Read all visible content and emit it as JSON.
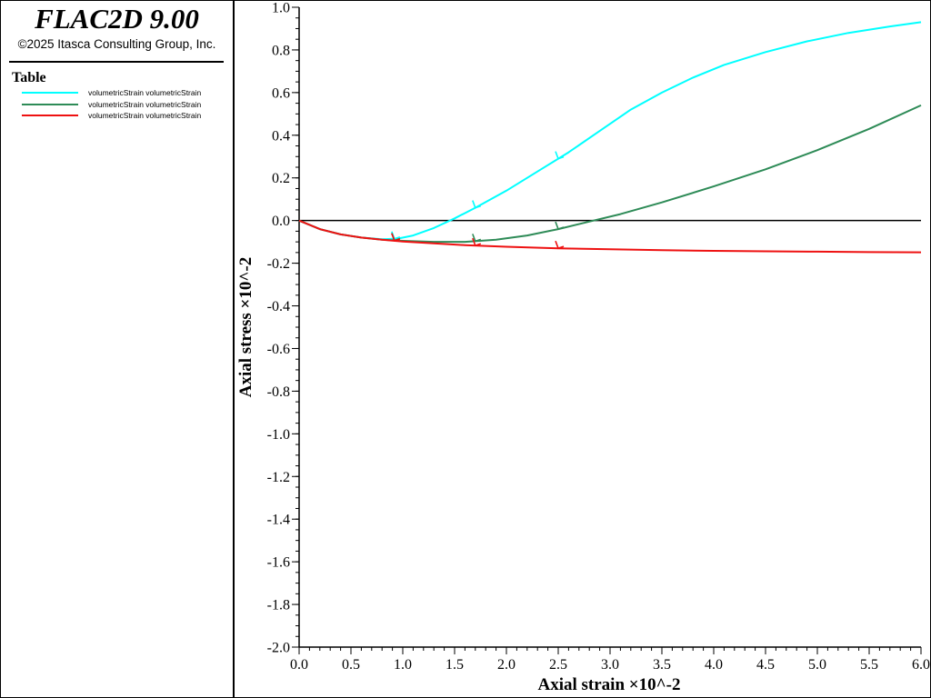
{
  "app": {
    "title": "FLAC2D 9.00",
    "copyright": "©2025 Itasca Consulting Group, Inc."
  },
  "legend": {
    "title": "Table",
    "entries": [
      {
        "label": "volumetricStrain volumetricStrain",
        "color": "#00ffff"
      },
      {
        "label": "volumetricStrain volumetricStrain",
        "color": "#2e8b57"
      },
      {
        "label": "volumetricStrain volumetricStrain",
        "color": "#ee1111"
      }
    ]
  },
  "chart_data": {
    "type": "line",
    "xlabel": "Axial strain ×10^-2",
    "ylabel": "Axial stress ×10^-2",
    "xlim": [
      0,
      6
    ],
    "ylim": [
      -2,
      1
    ],
    "x_ticks": [
      "0.0",
      "0.5",
      "1.0",
      "1.5",
      "2.0",
      "2.5",
      "3.0",
      "3.5",
      "4.0",
      "4.5",
      "5.0",
      "5.5",
      "6.0"
    ],
    "y_ticks": [
      "1.0",
      "0.8",
      "0.6",
      "0.4",
      "0.2",
      "0.0",
      "-0.2",
      "-0.4",
      "-0.6",
      "-0.8",
      "-1.0",
      "-1.2",
      "-1.4",
      "-1.6",
      "-1.8",
      "-2.0"
    ],
    "zero_line": true,
    "series": [
      {
        "color": "#00ffff",
        "x": [
          0,
          0.2,
          0.4,
          0.6,
          0.8,
          0.95,
          1.1,
          1.3,
          1.5,
          1.7,
          2.0,
          2.3,
          2.6,
          2.9,
          3.2,
          3.5,
          3.8,
          4.1,
          4.5,
          4.9,
          5.3,
          5.7,
          6.0
        ],
        "y": [
          0,
          -0.04,
          -0.065,
          -0.08,
          -0.088,
          -0.085,
          -0.07,
          -0.035,
          0.01,
          0.06,
          0.14,
          0.23,
          0.32,
          0.42,
          0.52,
          0.6,
          0.67,
          0.73,
          0.79,
          0.84,
          0.88,
          0.91,
          0.93
        ]
      },
      {
        "color": "#2e8b57",
        "x": [
          0,
          0.2,
          0.4,
          0.6,
          0.8,
          1.0,
          1.3,
          1.6,
          1.9,
          2.2,
          2.5,
          2.8,
          3.1,
          3.5,
          4.0,
          4.5,
          5.0,
          5.5,
          6.0
        ],
        "y": [
          0,
          -0.04,
          -0.065,
          -0.08,
          -0.09,
          -0.095,
          -0.1,
          -0.1,
          -0.09,
          -0.07,
          -0.04,
          -0.005,
          0.03,
          0.085,
          0.16,
          0.24,
          0.33,
          0.43,
          0.54
        ]
      },
      {
        "color": "#ee1111",
        "x": [
          0,
          0.2,
          0.4,
          0.6,
          0.8,
          1.0,
          1.3,
          1.6,
          2.0,
          2.5,
          3.0,
          3.5,
          4.0,
          4.5,
          5.0,
          5.5,
          6.0
        ],
        "y": [
          0,
          -0.04,
          -0.065,
          -0.08,
          -0.09,
          -0.098,
          -0.107,
          -0.115,
          -0.123,
          -0.13,
          -0.135,
          -0.139,
          -0.142,
          -0.144,
          -0.146,
          -0.148,
          -0.149
        ]
      }
    ],
    "markers": [
      {
        "color": "#00ffff",
        "x": [
          0.92,
          1.7,
          2.5
        ]
      },
      {
        "color": "#2e8b57",
        "x": [
          0.92,
          1.7,
          2.5
        ]
      },
      {
        "color": "#ee1111",
        "x": [
          0.92,
          1.7,
          2.5
        ]
      }
    ]
  }
}
